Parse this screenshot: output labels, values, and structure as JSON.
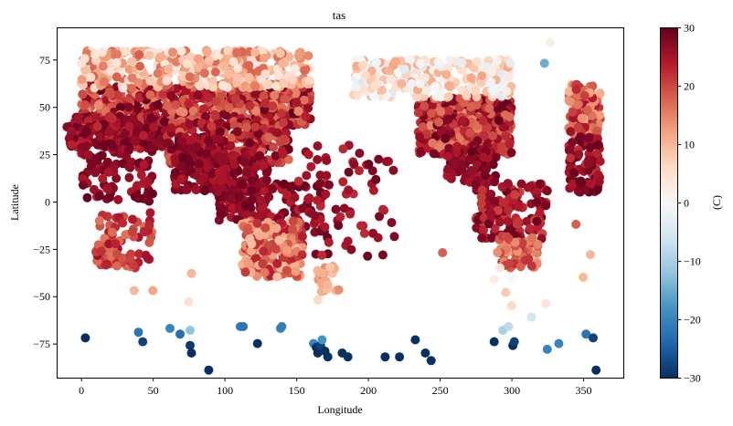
{
  "chart_data": {
    "type": "scatter",
    "title": "tas",
    "xlabel": "Longitude",
    "ylabel": "Latitude",
    "xlim": [
      -17,
      378
    ],
    "ylim": [
      -93,
      92
    ],
    "xticks": [
      0,
      50,
      100,
      150,
      200,
      250,
      300,
      350
    ],
    "yticks": [
      -75,
      -50,
      -25,
      0,
      25,
      50,
      75
    ],
    "grid": false,
    "colorbar": {
      "label": "(C)",
      "range": [
        -30,
        30
      ],
      "ticks": [
        -30,
        -20,
        -10,
        0,
        10,
        20,
        30
      ],
      "colormap": "RdBu_r",
      "colors": [
        "#053061",
        "#2166ac",
        "#4393c3",
        "#92c5de",
        "#d1e5f0",
        "#f7f7f7",
        "#fddbc7",
        "#f4a582",
        "#d6604d",
        "#b2182b",
        "#67001f"
      ]
    },
    "points": [
      [
        3,
        -72,
        -30
      ],
      [
        40,
        -69,
        -22
      ],
      [
        43,
        -74,
        -28
      ],
      [
        62,
        -67,
        -20
      ],
      [
        69,
        -70,
        -23
      ],
      [
        76,
        -68,
        -12
      ],
      [
        76,
        -76,
        -29
      ],
      [
        77,
        -80,
        -30
      ],
      [
        89,
        -89,
        -30
      ],
      [
        111,
        -66,
        -21
      ],
      [
        113,
        -66,
        -22
      ],
      [
        123,
        -75,
        -30
      ],
      [
        139,
        -67,
        -20
      ],
      [
        140,
        -66,
        -21
      ],
      [
        162,
        -75,
        -20
      ],
      [
        164,
        -77,
        -30
      ],
      [
        165,
        -80,
        -30
      ],
      [
        167,
        -76,
        -28
      ],
      [
        168,
        -73,
        -18
      ],
      [
        170,
        -79,
        -30
      ],
      [
        172,
        -82,
        -30
      ],
      [
        182,
        -80,
        -30
      ],
      [
        186,
        -82,
        -30
      ],
      [
        212,
        -82,
        -30
      ],
      [
        222,
        -82,
        -30
      ],
      [
        233,
        -73,
        -30
      ],
      [
        240,
        -80,
        -30
      ],
      [
        244,
        -84,
        -30
      ],
      [
        288,
        -74,
        -30
      ],
      [
        294,
        -68,
        -10
      ],
      [
        298,
        -66,
        -8
      ],
      [
        301,
        -76,
        -30
      ],
      [
        302,
        -74,
        -28
      ],
      [
        314,
        -61,
        -6
      ],
      [
        325,
        -78,
        -20
      ],
      [
        333,
        -75,
        -20
      ],
      [
        352,
        -70,
        -22
      ],
      [
        357,
        -72,
        -28
      ],
      [
        359,
        -89,
        -30
      ],
      [
        323,
        73,
        -15
      ],
      [
        327,
        84,
        2
      ],
      [
        37,
        -47,
        10
      ],
      [
        50,
        -47,
        12
      ],
      [
        77,
        -38,
        10
      ],
      [
        75,
        -53,
        5
      ],
      [
        165,
        -52,
        6
      ],
      [
        172,
        -44,
        10
      ],
      [
        252,
        -27,
        18
      ],
      [
        300,
        -55,
        6
      ],
      [
        296,
        -48,
        8
      ],
      [
        324,
        -54,
        4
      ],
      [
        350,
        -40,
        10
      ],
      [
        355,
        -28,
        10
      ],
      [
        345,
        -12,
        18
      ],
      [
        300,
        -40,
        0
      ],
      [
        292,
        -35,
        4
      ],
      [
        288,
        -41,
        2
      ]
    ],
    "clusters": [
      {
        "x": [
          0,
          160
        ],
        "y": [
          40,
          62
        ],
        "n": 650,
        "vmin": 14,
        "vmax": 30
      },
      {
        "x": [
          0,
          160
        ],
        "y": [
          60,
          80
        ],
        "n": 380,
        "vmin": 3,
        "vmax": 18
      },
      {
        "x": [
          -10,
          60
        ],
        "y": [
          28,
          45
        ],
        "n": 220,
        "vmin": 22,
        "vmax": 30
      },
      {
        "x": [
          60,
          145
        ],
        "y": [
          20,
          42
        ],
        "n": 260,
        "vmin": 17,
        "vmax": 30
      },
      {
        "x": [
          0,
          50
        ],
        "y": [
          0,
          30
        ],
        "n": 90,
        "vmin": 24,
        "vmax": 30
      },
      {
        "x": [
          65,
          100
        ],
        "y": [
          5,
          35
        ],
        "n": 120,
        "vmin": 24,
        "vmax": 30
      },
      {
        "x": [
          95,
          130
        ],
        "y": [
          -10,
          25
        ],
        "n": 180,
        "vmin": 24,
        "vmax": 30
      },
      {
        "x": [
          130,
          170
        ],
        "y": [
          -20,
          10
        ],
        "n": 60,
        "vmin": 22,
        "vmax": 30
      },
      {
        "x": [
          112,
          155
        ],
        "y": [
          -40,
          -10
        ],
        "n": 200,
        "vmin": 9,
        "vmax": 24
      },
      {
        "x": [
          10,
          50
        ],
        "y": [
          -35,
          -5
        ],
        "n": 80,
        "vmin": 16,
        "vmax": 26
      },
      {
        "x": [
          165,
          180
        ],
        "y": [
          -48,
          -34
        ],
        "n": 25,
        "vmin": 8,
        "vmax": 15
      },
      {
        "x": [
          235,
          300
        ],
        "y": [
          25,
          55
        ],
        "n": 450,
        "vmin": 14,
        "vmax": 30
      },
      {
        "x": [
          190,
          300
        ],
        "y": [
          55,
          75
        ],
        "n": 260,
        "vmin": -4,
        "vmax": 12
      },
      {
        "x": [
          255,
          290
        ],
        "y": [
          10,
          30
        ],
        "n": 90,
        "vmin": 24,
        "vmax": 30
      },
      {
        "x": [
          275,
          325
        ],
        "y": [
          -20,
          10
        ],
        "n": 140,
        "vmin": 20,
        "vmax": 30
      },
      {
        "x": [
          290,
          320
        ],
        "y": [
          -35,
          -18
        ],
        "n": 70,
        "vmin": 12,
        "vmax": 22
      },
      {
        "x": [
          340,
          362
        ],
        "y": [
          35,
          62
        ],
        "n": 110,
        "vmin": 10,
        "vmax": 26
      },
      {
        "x": [
          340,
          362
        ],
        "y": [
          5,
          35
        ],
        "n": 90,
        "vmin": 22,
        "vmax": 30
      },
      {
        "x": [
          150,
          220
        ],
        "y": [
          -30,
          30
        ],
        "n": 70,
        "vmin": 22,
        "vmax": 30
      }
    ]
  }
}
